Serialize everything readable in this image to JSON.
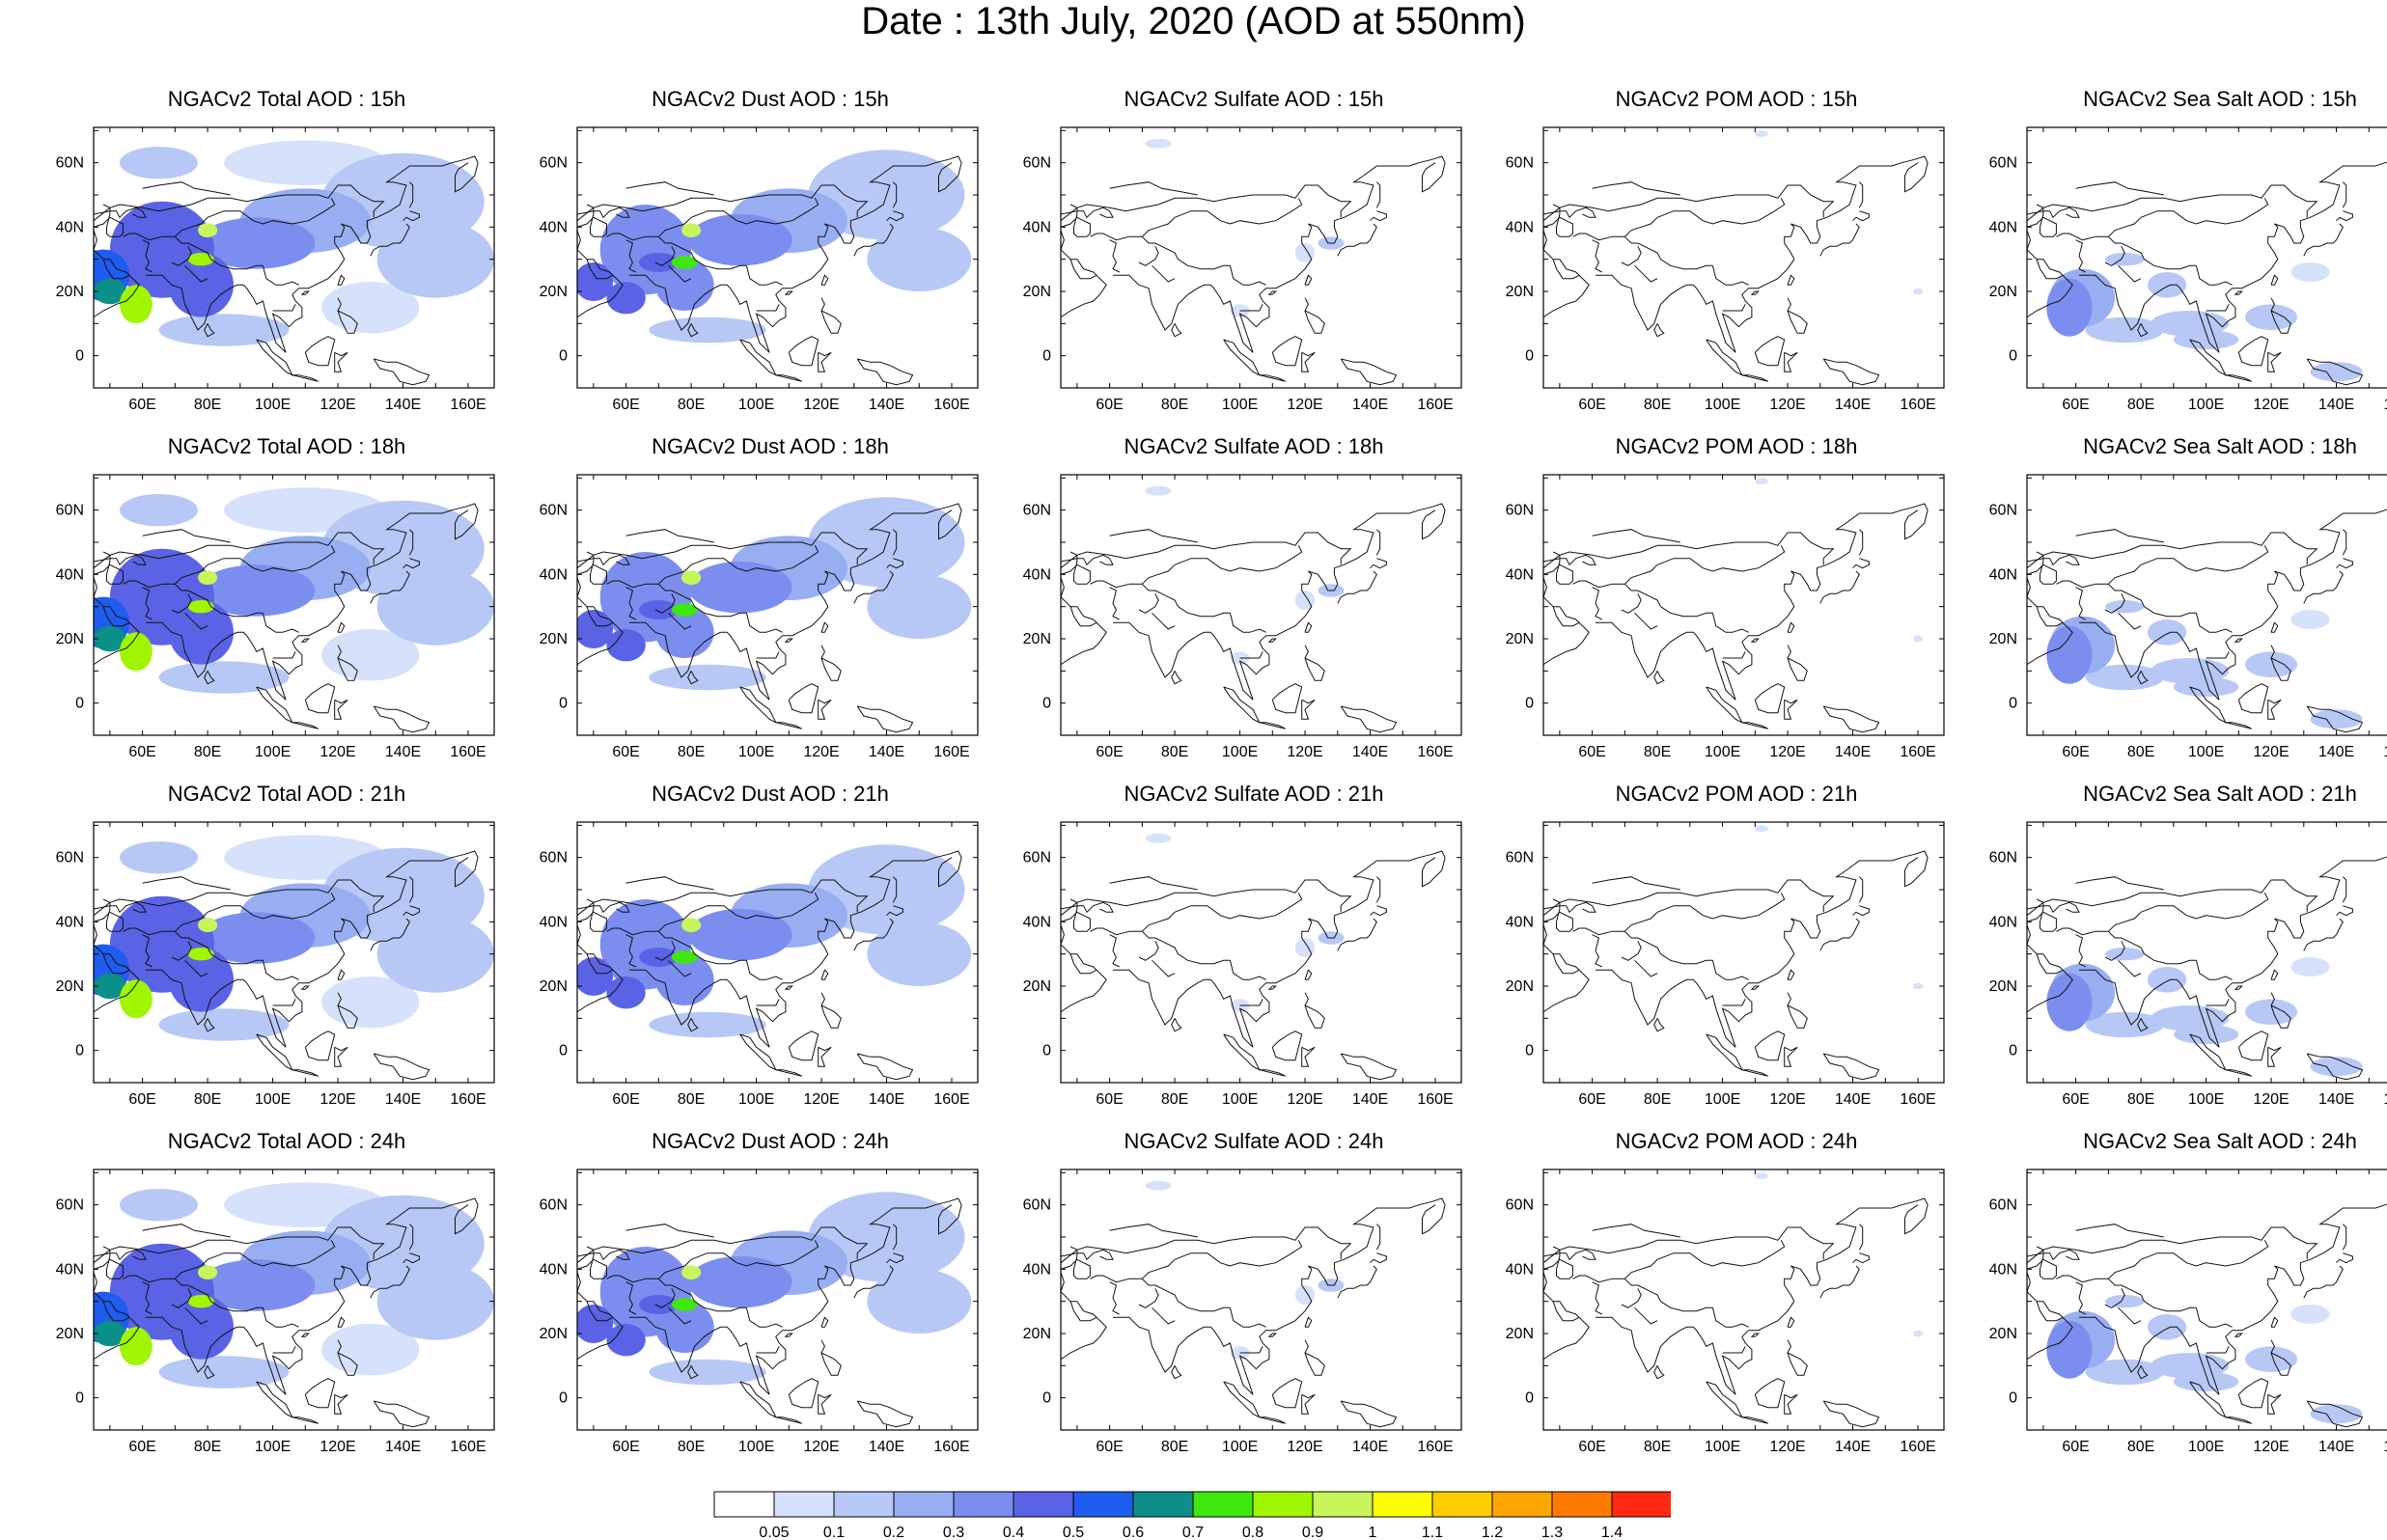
{
  "title": "Date : 13th July, 2020 (AOD at 550nm)",
  "lon_ticks": [
    "60E",
    "80E",
    "100E",
    "120E",
    "140E",
    "160E"
  ],
  "lat_ticks": [
    "60N",
    "40N",
    "20N",
    "0"
  ],
  "species": [
    {
      "id": "total",
      "label": "Total AOD"
    },
    {
      "id": "dust",
      "label": "Dust AOD"
    },
    {
      "id": "sulfate",
      "label": "Sulfate AOD"
    },
    {
      "id": "pom",
      "label": "POM AOD"
    },
    {
      "id": "seasalt",
      "label": "Sea Salt AOD"
    }
  ],
  "hours": [
    "15h",
    "18h",
    "21h",
    "24h"
  ],
  "panels": [
    [
      "NGACv2 Total AOD : 15h",
      "NGACv2 Dust AOD : 15h",
      "NGACv2 Sulfate AOD : 15h",
      "NGACv2 POM AOD : 15h",
      "NGACv2 Sea Salt AOD : 15h"
    ],
    [
      "NGACv2 Total AOD : 18h",
      "NGACv2 Dust AOD : 18h",
      "NGACv2 Sulfate AOD : 18h",
      "NGACv2 POM AOD : 18h",
      "NGACv2 Sea Salt AOD : 18h"
    ],
    [
      "NGACv2 Total AOD : 21h",
      "NGACv2 Dust AOD : 21h",
      "NGACv2 Sulfate AOD : 21h",
      "NGACv2 POM AOD : 21h",
      "NGACv2 Sea Salt AOD : 21h"
    ],
    [
      "NGACv2 Total AOD : 24h",
      "NGACv2 Dust AOD : 24h",
      "NGACv2 Sulfate AOD : 24h",
      "NGACv2 POM AOD : 24h",
      "NGACv2 Sea Salt  AOD : 24h"
    ]
  ],
  "colorbar": {
    "labels": [
      "0.05",
      "0.1",
      "0.2",
      "0.3",
      "0.4",
      "0.5",
      "0.6",
      "0.7",
      "0.8",
      "0.9",
      "1",
      "1.1",
      "1.2",
      "1.3",
      "1.4"
    ],
    "colors": [
      "#ffffff",
      "#d6e2fb",
      "#b7c8f6",
      "#98aef3",
      "#7b8ef0",
      "#5a63e6",
      "#1f5cf0",
      "#0a9088",
      "#3ee80e",
      "#a0f500",
      "#c8f55a",
      "#ffff00",
      "#ffcc00",
      "#ffa500",
      "#ff7a00",
      "#ff2a10"
    ]
  }
}
